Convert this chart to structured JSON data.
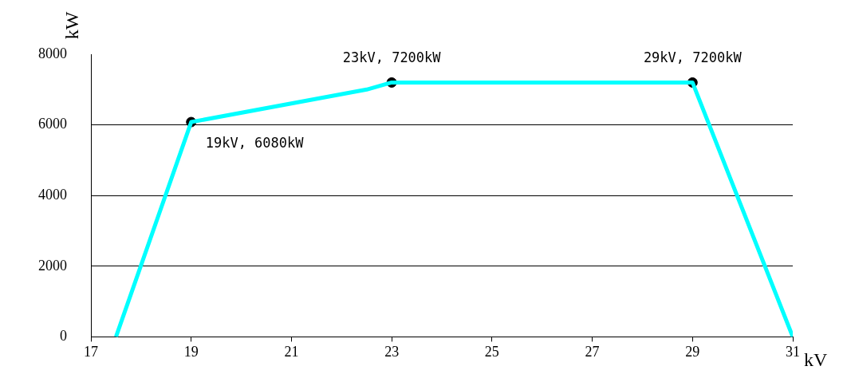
{
  "chart_data": {
    "type": "line",
    "xlabel": "kV",
    "ylabel": "kW",
    "xlim": [
      17,
      31
    ],
    "xticks": [
      17,
      19,
      21,
      23,
      25,
      27,
      29,
      31
    ],
    "ylim": [
      0,
      8000
    ],
    "yticks": [
      0,
      2000,
      4000,
      6000,
      8000
    ],
    "grid": "y",
    "legend": false,
    "series": [
      {
        "type": "line",
        "color": "#00ffff",
        "x": [
          17.5,
          19,
          22.5,
          23,
          29,
          31
        ],
        "values": [
          0,
          6080,
          7000,
          7200,
          7200,
          0
        ],
        "marker": "none",
        "line_style": "solid"
      },
      {
        "type": "scatter",
        "color": "#000000",
        "x": [
          19,
          23,
          29
        ],
        "values": [
          6080,
          7200,
          7200
        ],
        "marker": "circle"
      }
    ],
    "annotations": [
      {
        "text": "19kV, 6080kW",
        "x": 19,
        "y": 6080
      },
      {
        "text": "23kV, 7200kW",
        "x": 23,
        "y": 7200
      },
      {
        "text": "29kV, 7200kW",
        "x": 29,
        "y": 7200
      }
    ]
  }
}
